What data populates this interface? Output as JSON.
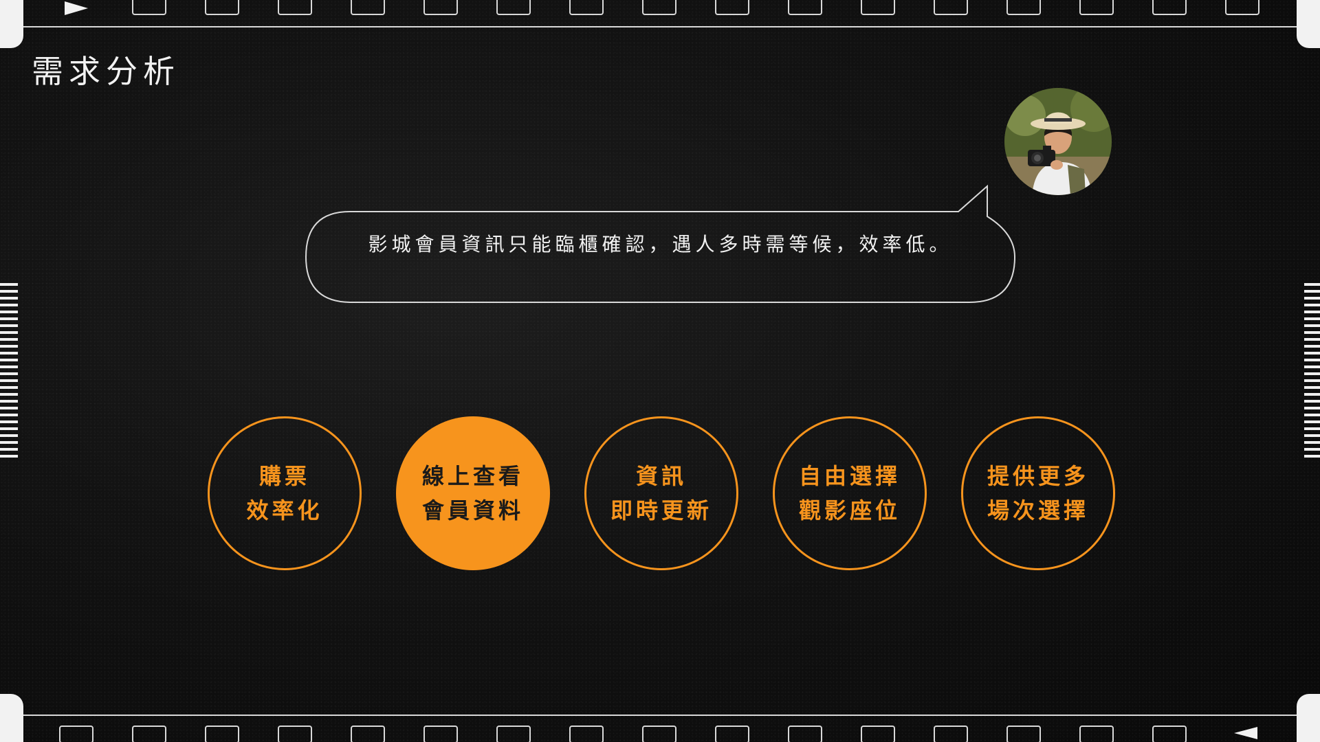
{
  "title": "需求分析",
  "bubble": {
    "text": "影城會員資訊只能臨櫃確認，遇人多時需等候，效率低。"
  },
  "needs": [
    {
      "line1": "購票",
      "line2": "效率化",
      "filled": false
    },
    {
      "line1": "線上查看",
      "line2": "會員資料",
      "filled": true
    },
    {
      "line1": "資訊",
      "line2": "即時更新",
      "filled": false
    },
    {
      "line1": "自由選擇",
      "line2": "觀影座位",
      "filled": false
    },
    {
      "line1": "提供更多",
      "line2": "場次選擇",
      "filled": false
    }
  ],
  "colors": {
    "accent": "#f7941d",
    "background": "#121212",
    "text": "#f2f2f2"
  },
  "icons": {
    "avatar": "user-photo-avatar"
  }
}
